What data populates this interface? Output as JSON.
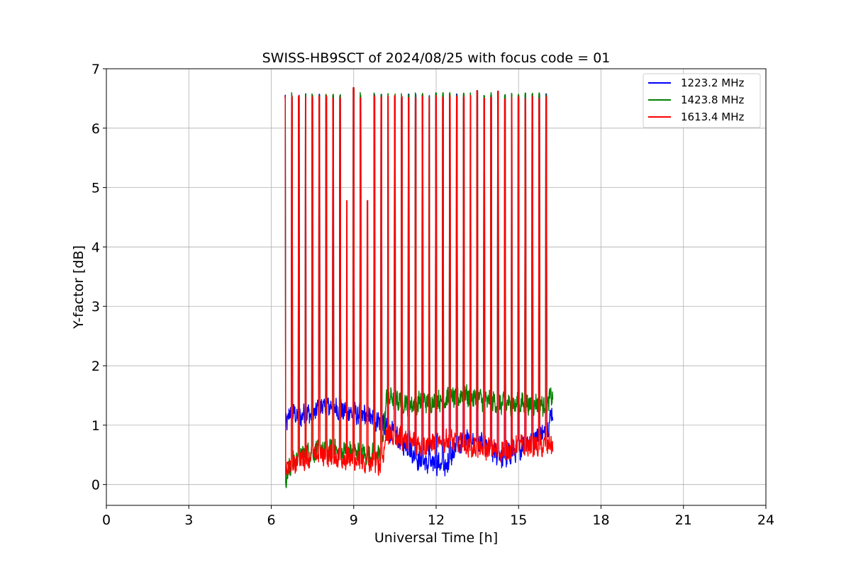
{
  "chart_data": {
    "type": "line",
    "title": "SWISS-HB9SCT of 2024/08/25 with focus code = 01",
    "xlabel": "Universal Time [h]",
    "ylabel": "Y-factor [dB]",
    "xlim": [
      0,
      24
    ],
    "ylim": [
      -0.35,
      7
    ],
    "xticks": [
      0,
      3,
      6,
      9,
      12,
      15,
      18,
      21,
      24
    ],
    "yticks": [
      0,
      1,
      2,
      3,
      4,
      5,
      6,
      7
    ],
    "grid": true,
    "legend_position": "top-right",
    "data_range_h": [
      6.5,
      16.25
    ],
    "series": [
      {
        "name": "1223.2 MHz",
        "color": "#0000ff",
        "baseline": [
          [
            6.5,
            1.0
          ],
          [
            6.7,
            1.2
          ],
          [
            7.0,
            1.15
          ],
          [
            7.5,
            1.2
          ],
          [
            8.0,
            1.35
          ],
          [
            8.5,
            1.25
          ],
          [
            9.0,
            1.2
          ],
          [
            9.5,
            1.15
          ],
          [
            10.0,
            1.05
          ],
          [
            10.3,
            0.9
          ],
          [
            10.7,
            0.75
          ],
          [
            11.0,
            0.6
          ],
          [
            11.5,
            0.35
          ],
          [
            12.0,
            0.35
          ],
          [
            12.4,
            0.3
          ],
          [
            12.6,
            0.55
          ],
          [
            13.0,
            0.75
          ],
          [
            13.5,
            0.75
          ],
          [
            14.0,
            0.55
          ],
          [
            14.5,
            0.45
          ],
          [
            15.0,
            0.6
          ],
          [
            15.5,
            0.75
          ],
          [
            16.0,
            0.9
          ],
          [
            16.25,
            1.25
          ]
        ],
        "spike_height": 6.58
      },
      {
        "name": "1423.8 MHz",
        "color": "#008000",
        "baseline": [
          [
            6.5,
            0.1
          ],
          [
            6.7,
            0.3
          ],
          [
            7.0,
            0.5
          ],
          [
            7.5,
            0.55
          ],
          [
            8.0,
            0.6
          ],
          [
            8.5,
            0.55
          ],
          [
            9.0,
            0.55
          ],
          [
            9.5,
            0.5
          ],
          [
            10.0,
            0.5
          ],
          [
            10.2,
            1.45
          ],
          [
            10.5,
            1.45
          ],
          [
            11.0,
            1.35
          ],
          [
            11.5,
            1.4
          ],
          [
            12.0,
            1.4
          ],
          [
            12.5,
            1.45
          ],
          [
            13.0,
            1.5
          ],
          [
            13.5,
            1.45
          ],
          [
            14.0,
            1.4
          ],
          [
            14.5,
            1.35
          ],
          [
            15.0,
            1.35
          ],
          [
            15.5,
            1.35
          ],
          [
            16.0,
            1.35
          ],
          [
            16.25,
            1.5
          ]
        ],
        "spike_height": 6.6
      },
      {
        "name": "1613.4 MHz",
        "color": "#ff0000",
        "baseline": [
          [
            6.5,
            0.25
          ],
          [
            6.7,
            0.3
          ],
          [
            7.0,
            0.4
          ],
          [
            7.5,
            0.5
          ],
          [
            8.0,
            0.5
          ],
          [
            8.5,
            0.45
          ],
          [
            9.0,
            0.4
          ],
          [
            9.5,
            0.35
          ],
          [
            10.0,
            0.35
          ],
          [
            10.2,
            0.85
          ],
          [
            10.5,
            0.8
          ],
          [
            11.0,
            0.75
          ],
          [
            11.5,
            0.65
          ],
          [
            12.0,
            0.7
          ],
          [
            12.5,
            0.75
          ],
          [
            13.0,
            0.65
          ],
          [
            13.5,
            0.6
          ],
          [
            14.0,
            0.6
          ],
          [
            14.5,
            0.55
          ],
          [
            15.0,
            0.65
          ],
          [
            15.5,
            0.65
          ],
          [
            16.0,
            0.65
          ],
          [
            16.25,
            0.7
          ]
        ],
        "spike_height": 6.55
      }
    ],
    "spikes_h": [
      6.5,
      6.75,
      7.0,
      7.25,
      7.5,
      7.75,
      8.0,
      8.25,
      8.5,
      8.75,
      9.0,
      9.25,
      9.5,
      9.75,
      10.0,
      10.25,
      10.5,
      10.75,
      11.0,
      11.25,
      11.5,
      11.75,
      12.0,
      12.25,
      12.5,
      12.75,
      13.0,
      13.25,
      13.5,
      13.75,
      14.0,
      14.25,
      14.5,
      14.75,
      15.0,
      15.25,
      15.5,
      15.75,
      16.0
    ],
    "spike_overrides": [
      {
        "x": 8.75,
        "y": 4.78
      },
      {
        "x": 9.0,
        "y": 6.68
      },
      {
        "x": 9.5,
        "y": 4.78
      },
      {
        "x": 13.5,
        "y": 6.63
      },
      {
        "x": 14.25,
        "y": 6.62
      }
    ]
  }
}
